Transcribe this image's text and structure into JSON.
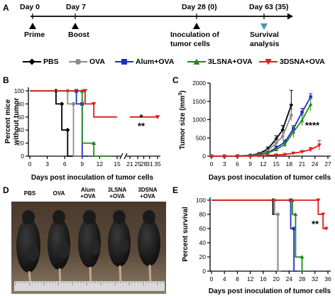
{
  "panels": {
    "A": "A",
    "B": "B",
    "C": "C",
    "D": "D",
    "E": "E"
  },
  "timeline": {
    "events": [
      {
        "day": "Day 0",
        "label": "Prime",
        "marker": "black-triangle"
      },
      {
        "day": "Day 7",
        "label": "Boost",
        "marker": "black-triangle"
      },
      {
        "day": "Day 28 (0)",
        "label": "Inoculation of tumor cells",
        "label_lines": [
          "Inoculation of",
          "tumor cells"
        ],
        "marker": "black-triangle"
      },
      {
        "day": "Day 63 (35)",
        "label": "Survival analysis",
        "label_lines": [
          "Survival",
          "analysis"
        ],
        "marker": "blue-triangle"
      }
    ]
  },
  "legend": [
    {
      "name": "PBS",
      "color": "#000000",
      "marker": "diamond"
    },
    {
      "name": "OVA",
      "color": "#8c8c8c",
      "marker": "circle"
    },
    {
      "name": "Alum+OVA",
      "color": "#1f2fbf",
      "marker": "square"
    },
    {
      "name": "3LSNA+OVA",
      "color": "#1e8a1e",
      "marker": "triangle-up"
    },
    {
      "name": "3DSNA+OVA",
      "color": "#e31a1c",
      "marker": "triangle-down"
    }
  ],
  "colors": {
    "PBS": "#000000",
    "OVA": "#8c8c8c",
    "Alum+OVA": "#1f2fbf",
    "3LSNA+OVA": "#1e8a1e",
    "3DSNA+OVA": "#e31a1c",
    "timeline_survival_marker": "#4a90b8"
  },
  "photo": {
    "labels": [
      [
        "PBS"
      ],
      [
        "OVA"
      ],
      [
        "Alum",
        "+OVA"
      ],
      [
        "3LSNA",
        "+OVA"
      ],
      [
        "3DSNA",
        "+OVA"
      ]
    ],
    "ruler_color": "#d9d9d9",
    "background_color": "#ffffff"
  },
  "chart_data": [
    {
      "panel": "B",
      "type": "line",
      "subtype": "step",
      "xlabel": "Days post inoculation of tumor cells",
      "ylabel": "Percent mice without tumor",
      "ylabel_lines": [
        "Percent mice",
        "without tumor"
      ],
      "xlim": [
        0,
        35
      ],
      "ylim": [
        0,
        100
      ],
      "xticks": [
        0,
        3,
        6,
        9,
        12,
        15,
        21,
        25,
        28,
        31,
        35
      ],
      "yticks": [
        0,
        20,
        40,
        60,
        80,
        100
      ],
      "axis_break": "between 15 and 21",
      "annotations": [
        "*",
        "**"
      ],
      "series": [
        {
          "name": "PBS",
          "x": [
            0,
            4.5,
            4.5,
            5.5,
            5.5,
            6.5,
            6.5,
            9
          ],
          "y": [
            100,
            100,
            80,
            80,
            40,
            40,
            0,
            0
          ]
        },
        {
          "name": "OVA",
          "x": [
            0,
            6.5,
            6.5,
            7.5,
            7.5,
            9
          ],
          "y": [
            100,
            100,
            80,
            80,
            0,
            0
          ]
        },
        {
          "name": "Alum+OVA",
          "x": [
            0,
            8,
            8,
            9,
            9,
            10
          ],
          "y": [
            100,
            100,
            80,
            80,
            0,
            0
          ]
        },
        {
          "name": "3LSNA+OVA",
          "x": [
            0,
            9,
            9,
            11,
            11,
            14
          ],
          "y": [
            100,
            100,
            20,
            20,
            0,
            0
          ]
        },
        {
          "name": "3DSNA+OVA",
          "x": [
            0,
            9.5,
            9.5,
            11,
            11,
            35
          ],
          "y": [
            100,
            100,
            80,
            80,
            60,
            60
          ]
        }
      ]
    },
    {
      "panel": "C",
      "type": "line",
      "xlabel": "Days post inoculation of tumor cells",
      "ylabel": "Tumor size (mm³)",
      "ylabel_parts": [
        "Tumor size (mm",
        "3",
        ")"
      ],
      "xlim": [
        0,
        27
      ],
      "ylim": [
        0,
        2000
      ],
      "xticks": [
        0,
        3,
        6,
        9,
        12,
        15,
        18,
        21,
        24,
        27
      ],
      "yticks": [
        0,
        500,
        1000,
        1500,
        2000
      ],
      "annotations": [
        "****"
      ],
      "series": [
        {
          "name": "PBS",
          "x": [
            0,
            3,
            6,
            9,
            11,
            13,
            15,
            16.5,
            18.5
          ],
          "y": [
            0,
            0,
            5,
            25,
            70,
            190,
            470,
            720,
            1400
          ],
          "err": [
            0,
            0,
            5,
            10,
            25,
            60,
            90,
            120,
            400
          ]
        },
        {
          "name": "OVA",
          "x": [
            0,
            3,
            6,
            9,
            11,
            13,
            15,
            16.5,
            18.5
          ],
          "y": [
            0,
            0,
            5,
            20,
            55,
            140,
            360,
            540,
            1120
          ],
          "err": [
            0,
            0,
            5,
            10,
            20,
            40,
            80,
            120,
            150
          ]
        },
        {
          "name": "Alum+OVA",
          "x": [
            0,
            3,
            6,
            9,
            11,
            13,
            15,
            17,
            19,
            21,
            23
          ],
          "y": [
            0,
            0,
            5,
            20,
            45,
            90,
            230,
            380,
            750,
            1200,
            1620
          ],
          "err": [
            0,
            0,
            5,
            8,
            15,
            30,
            50,
            70,
            90,
            110,
            90
          ]
        },
        {
          "name": "3LSNA+OVA",
          "x": [
            0,
            3,
            6,
            9,
            11,
            13,
            15,
            17,
            19,
            21,
            23
          ],
          "y": [
            0,
            0,
            5,
            15,
            35,
            80,
            180,
            320,
            660,
            980,
            1420
          ],
          "err": [
            0,
            0,
            5,
            8,
            15,
            25,
            40,
            60,
            150,
            140,
            180
          ]
        },
        {
          "name": "3DSNA+OVA",
          "x": [
            0,
            3,
            6,
            9,
            11,
            13,
            15,
            17,
            19,
            21,
            23,
            25
          ],
          "y": [
            0,
            0,
            0,
            5,
            10,
            20,
            30,
            45,
            80,
            120,
            180,
            300
          ],
          "err": [
            0,
            0,
            0,
            3,
            5,
            8,
            10,
            15,
            20,
            30,
            60,
            130
          ]
        }
      ]
    },
    {
      "panel": "E",
      "type": "line",
      "subtype": "step",
      "xlabel": "Days post inoculation of tumor cells",
      "ylabel": "Percent survival",
      "xlim": [
        0,
        36
      ],
      "ylim": [
        0,
        100
      ],
      "xticks": [
        0,
        4,
        8,
        12,
        16,
        20,
        24,
        28,
        32,
        36
      ],
      "yticks": [
        0,
        20,
        40,
        60,
        80,
        100
      ],
      "annotations": [
        "**"
      ],
      "series": [
        {
          "name": "PBS",
          "x": [
            0,
            19,
            19,
            20.5,
            20.5,
            21.5
          ],
          "y": [
            100,
            100,
            80,
            80,
            0,
            0
          ]
        },
        {
          "name": "OVA",
          "x": [
            0,
            19.5,
            19.5,
            20.5,
            20.5,
            21.5
          ],
          "y": [
            100,
            100,
            80,
            80,
            0,
            0
          ]
        },
        {
          "name": "Alum+OVA",
          "x": [
            0,
            24.5,
            24.5,
            25.5,
            25.5,
            26.5
          ],
          "y": [
            100,
            100,
            60,
            60,
            0,
            0
          ]
        },
        {
          "name": "3LSNA+OVA",
          "x": [
            0,
            25,
            25,
            26,
            26,
            28,
            28,
            29
          ],
          "y": [
            100,
            100,
            80,
            80,
            20,
            20,
            0,
            0
          ]
        },
        {
          "name": "3DSNA+OVA",
          "x": [
            0,
            33,
            33,
            34.5,
            34.5,
            35.5
          ],
          "y": [
            100,
            100,
            80,
            80,
            60,
            60
          ]
        }
      ]
    }
  ]
}
